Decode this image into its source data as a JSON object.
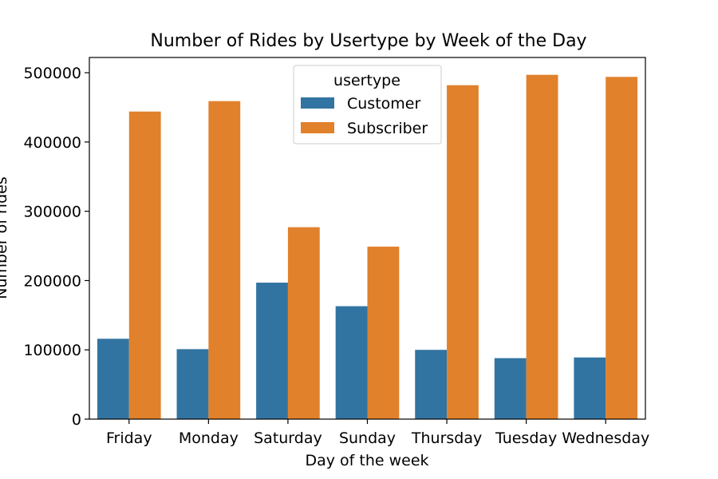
{
  "chart_data": {
    "type": "bar",
    "title": "Number of Rides by Usertype by Week of the Day",
    "xlabel": "Day of the week",
    "ylabel": "Number of rides",
    "categories": [
      "Friday",
      "Monday",
      "Saturday",
      "Sunday",
      "Thursday",
      "Tuesday",
      "Wednesday"
    ],
    "series": [
      {
        "name": "Customer",
        "color": "#3274a1",
        "values": [
          116000,
          101000,
          197000,
          163000,
          100000,
          88000,
          89000
        ]
      },
      {
        "name": "Subscriber",
        "color": "#e1812c",
        "values": [
          444000,
          459000,
          277000,
          249000,
          482000,
          497000,
          494000
        ]
      }
    ],
    "ylim": [
      0,
      522000
    ],
    "yticks": [
      0,
      100000,
      200000,
      300000,
      400000,
      500000
    ],
    "ytick_labels": [
      "0",
      "100000",
      "200000",
      "300000",
      "400000",
      "500000"
    ],
    "legend": {
      "title": "usertype",
      "placement": "top-center"
    },
    "grid": false
  }
}
